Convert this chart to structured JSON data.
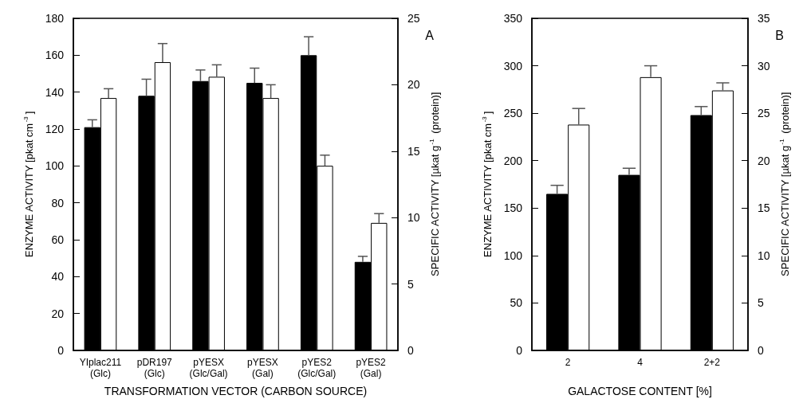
{
  "chart_data": [
    {
      "type": "bar",
      "categories": [
        "YIplac211\n(Glc)",
        "pDR197\n(Glc)",
        "pYESX\n(Glc/Gal)",
        "pYESX\n(Gal)",
        "pYES2\n(Glc/Gal)",
        "pYES2\n(Gal)"
      ],
      "xlabel": "TRANSFORMATION VECTOR (CARBON SOURCE)",
      "ylabel": "ENZYME ACTIVITY [pkat cm$^{-3}$]",
      "y2label": "SPECIFIC ACTIVITY [µkat g$^{-1}$ (protein)]",
      "annotations": [
        "A"
      ],
      "ylim": [
        0,
        180
      ],
      "yticks": [
        0,
        20,
        40,
        60,
        80,
        100,
        120,
        140,
        160,
        180
      ],
      "y2lim": [
        0,
        25
      ],
      "y2ticks": [
        0,
        5,
        10,
        15,
        20,
        25
      ],
      "grid": false,
      "series": [
        {
          "color": "#000000",
          "values": [
            121,
            138,
            146,
            145,
            160,
            48
          ],
          "errors": [
            [
              121,
              125
            ],
            [
              138,
              147
            ],
            [
              146,
              152
            ],
            [
              145,
              153
            ],
            [
              160,
              170
            ],
            [
              48,
              51
            ]
          ]
        },
        {
          "color": "#ffffff",
          "axis": "y2",
          "values": [
            19.0,
            21.7,
            20.6,
            19.0,
            13.9,
            9.6
          ],
          "errors": [
            [
              19.0,
              19.7
            ],
            [
              21.7,
              23.1
            ],
            [
              20.6,
              21.5
            ],
            [
              19.0,
              20.0
            ],
            [
              13.9,
              14.7
            ],
            [
              9.6,
              10.3
            ]
          ]
        }
      ]
    },
    {
      "type": "bar",
      "categories": [
        "2",
        "4",
        "2+2"
      ],
      "xlabel": "GALACTOSE CONTENT [%]",
      "ylabel": "ENZYME ACTIVITY [pkat cm$^{-3}$]",
      "y2label": "SPECIFIC ACTIVITY [µkat g$^{-1}$ (protein)]",
      "annotations": [
        "B"
      ],
      "ylim": [
        0,
        350
      ],
      "yticks": [
        0,
        50,
        100,
        150,
        200,
        250,
        300,
        350
      ],
      "y2lim": [
        0,
        35
      ],
      "y2ticks": [
        0,
        5,
        10,
        15,
        20,
        25,
        30,
        35
      ],
      "grid": false,
      "series": [
        {
          "color": "#000000",
          "values": [
            165,
            185,
            248
          ],
          "errors": [
            [
              165,
              174
            ],
            [
              185,
              192
            ],
            [
              248,
              257
            ]
          ]
        },
        {
          "color": "#ffffff",
          "axis": "y2",
          "values": [
            23.8,
            28.8,
            27.4
          ],
          "errors": [
            [
              23.8,
              25.5
            ],
            [
              28.8,
              30.0
            ],
            [
              27.4,
              28.2
            ]
          ]
        }
      ]
    }
  ]
}
